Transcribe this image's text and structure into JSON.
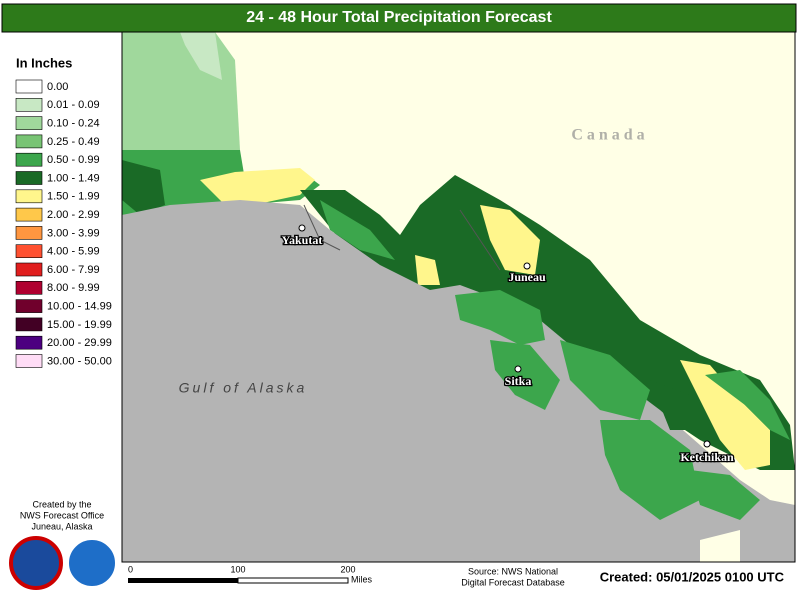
{
  "header": {
    "title": "24 - 48 Hour Total Precipitation Forecast"
  },
  "legend": {
    "title": "In Inches",
    "items": [
      {
        "label": "0.00",
        "color": "#ffffff"
      },
      {
        "label": "0.01 - 0.09",
        "color": "#c8e8c4"
      },
      {
        "label": "0.10 - 0.24",
        "color": "#a0d89c"
      },
      {
        "label": "0.25 - 0.49",
        "color": "#78c474"
      },
      {
        "label": "0.50 - 0.99",
        "color": "#3ca64c"
      },
      {
        "label": "1.00 - 1.49",
        "color": "#1a6a26"
      },
      {
        "label": "1.50 - 1.99",
        "color": "#fff68c"
      },
      {
        "label": "2.00 - 2.99",
        "color": "#ffc84a"
      },
      {
        "label": "3.00 - 3.99",
        "color": "#ff9640"
      },
      {
        "label": "4.00 - 5.99",
        "color": "#ff5030"
      },
      {
        "label": "6.00 - 7.99",
        "color": "#e01e1e"
      },
      {
        "label": "8.00 - 9.99",
        "color": "#b00030"
      },
      {
        "label": "10.00 - 14.99",
        "color": "#70002c"
      },
      {
        "label": "15.00 - 19.99",
        "color": "#420024"
      },
      {
        "label": "20.00 - 29.99",
        "color": "#4c0080"
      },
      {
        "label": "30.00 - 50.00",
        "color": "#ffdcf6"
      }
    ]
  },
  "credits": [
    "Created by the",
    "NWS Forecast Office",
    "Juneau, Alaska"
  ],
  "map": {
    "region_land": "Canada",
    "region_sea": "Gulf of Alaska",
    "places": [
      "Yakutat",
      "Juneau",
      "Sitka",
      "Ketchikan"
    ]
  },
  "scale": {
    "labels": [
      "0",
      "100",
      "200"
    ],
    "unit": "Miles"
  },
  "source": [
    "Source: NWS National",
    "Digital Forecast Database"
  ],
  "created": "Created: 05/01/2025 0100 UTC"
}
